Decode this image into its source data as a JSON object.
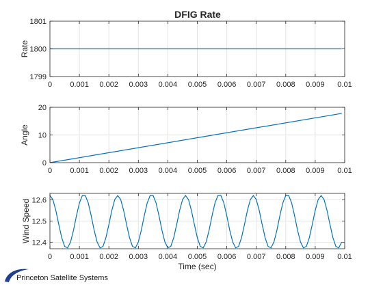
{
  "figure": {
    "title": "DFIG Rate",
    "logo_text": "Princeton Satellite Systems"
  },
  "colors": {
    "line": "#0072BD",
    "grid": "#e3e3e3",
    "axis": "#262626",
    "logo_swoosh": "#1f3f8f"
  },
  "chart_data": [
    {
      "type": "line",
      "title": "DFIG Rate",
      "xlabel": "",
      "ylabel": "Rate",
      "xlim": [
        0,
        0.01
      ],
      "ylim": [
        1799,
        1801
      ],
      "xticks": [
        "0",
        "0.001",
        "0.002",
        "0.003",
        "0.004",
        "0.005",
        "0.006",
        "0.007",
        "0.008",
        "0.009",
        "0.01"
      ],
      "yticks": [
        "1799",
        "1800",
        "1801"
      ],
      "grid": true,
      "series": [
        {
          "x": [
            0,
            0.0099
          ],
          "y": [
            1800,
            1800
          ]
        }
      ]
    },
    {
      "type": "line",
      "title": "",
      "xlabel": "",
      "ylabel": "Angle",
      "xlim": [
        0,
        0.01
      ],
      "ylim": [
        0,
        20
      ],
      "xticks": [
        "0",
        "0.001",
        "0.002",
        "0.003",
        "0.004",
        "0.005",
        "0.006",
        "0.007",
        "0.008",
        "0.009",
        "0.01"
      ],
      "yticks": [
        "0",
        "10",
        "20"
      ],
      "grid": true,
      "series": [
        {
          "x": [
            0,
            0.0099
          ],
          "y": [
            0,
            17.8
          ]
        }
      ]
    },
    {
      "type": "line",
      "title": "",
      "xlabel": "Time (sec)",
      "ylabel": "Wind Speed",
      "xlim": [
        0,
        0.01
      ],
      "ylim": [
        12.37,
        12.63
      ],
      "xticks": [
        "0",
        "0.001",
        "0.002",
        "0.003",
        "0.004",
        "0.005",
        "0.006",
        "0.007",
        "0.008",
        "0.009",
        "0.01"
      ],
      "yticks": [
        "12.4",
        "12.5",
        "12.6"
      ],
      "grid": true,
      "series": [
        {
          "x": [
            0,
            0.0001,
            0.0002,
            0.0003,
            0.0004,
            0.0005,
            0.0006,
            0.0007,
            0.0008,
            0.0009,
            0.001,
            0.0011,
            0.0012,
            0.0013,
            0.0014,
            0.0015,
            0.0016,
            0.0017,
            0.0018,
            0.0019,
            0.002,
            0.0021,
            0.0022,
            0.0023,
            0.0024,
            0.0025,
            0.0026,
            0.0027,
            0.0028,
            0.0029,
            0.003,
            0.0031,
            0.0032,
            0.0033,
            0.0034,
            0.0035,
            0.0036,
            0.0037,
            0.0038,
            0.0039,
            0.004,
            0.0041,
            0.0042,
            0.0043,
            0.0044,
            0.0045,
            0.0046,
            0.0047,
            0.0048,
            0.0049,
            0.005,
            0.0051,
            0.0052,
            0.0053,
            0.0054,
            0.0055,
            0.0056,
            0.0057,
            0.0058,
            0.0059,
            0.006,
            0.0061,
            0.0062,
            0.0063,
            0.0064,
            0.0065,
            0.0066,
            0.0067,
            0.0068,
            0.0069,
            0.007,
            0.0071,
            0.0072,
            0.0073,
            0.0074,
            0.0075,
            0.0076,
            0.0077,
            0.0078,
            0.0079,
            0.008,
            0.0081,
            0.0082,
            0.0083,
            0.0084,
            0.0085,
            0.0086,
            0.0087,
            0.0088,
            0.0089,
            0.009,
            0.0091,
            0.0092,
            0.0093,
            0.0094,
            0.0095,
            0.0096,
            0.0097,
            0.0098,
            0.0099
          ],
          "y": [
            12.62,
            12.601,
            12.55,
            12.484,
            12.422,
            12.381,
            12.374,
            12.402,
            12.457,
            12.525,
            12.585,
            12.62,
            12.62,
            12.585,
            12.525,
            12.457,
            12.402,
            12.374,
            12.381,
            12.422,
            12.484,
            12.55,
            12.601,
            12.62,
            12.601,
            12.55,
            12.484,
            12.422,
            12.381,
            12.374,
            12.402,
            12.457,
            12.525,
            12.585,
            12.62,
            12.62,
            12.585,
            12.525,
            12.457,
            12.402,
            12.374,
            12.381,
            12.422,
            12.484,
            12.55,
            12.601,
            12.62,
            12.601,
            12.55,
            12.484,
            12.422,
            12.381,
            12.374,
            12.402,
            12.457,
            12.525,
            12.585,
            12.62,
            12.62,
            12.585,
            12.525,
            12.457,
            12.402,
            12.374,
            12.381,
            12.422,
            12.484,
            12.55,
            12.601,
            12.62,
            12.601,
            12.55,
            12.484,
            12.422,
            12.381,
            12.374,
            12.402,
            12.457,
            12.525,
            12.585,
            12.62,
            12.62,
            12.585,
            12.525,
            12.457,
            12.402,
            12.374,
            12.381,
            12.422,
            12.484,
            12.55,
            12.601,
            12.62,
            12.601,
            12.55,
            12.484,
            12.422,
            12.381,
            12.374,
            12.402
          ]
        }
      ]
    }
  ]
}
